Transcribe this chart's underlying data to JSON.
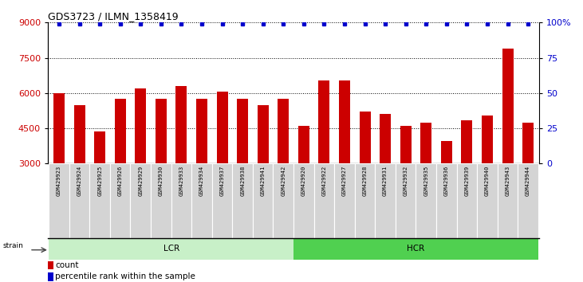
{
  "title": "GDS3723 / ILMN_1358419",
  "samples": [
    "GSM429923",
    "GSM429924",
    "GSM429925",
    "GSM429926",
    "GSM429929",
    "GSM429930",
    "GSM429933",
    "GSM429934",
    "GSM429937",
    "GSM429938",
    "GSM429941",
    "GSM429942",
    "GSM429920",
    "GSM429922",
    "GSM429927",
    "GSM429928",
    "GSM429931",
    "GSM429932",
    "GSM429935",
    "GSM429936",
    "GSM429939",
    "GSM429940",
    "GSM429943",
    "GSM429944"
  ],
  "counts": [
    5980,
    5500,
    4380,
    5750,
    6200,
    5750,
    6300,
    5750,
    6050,
    5750,
    5500,
    5750,
    4620,
    6550,
    6550,
    5200,
    5100,
    4600,
    4750,
    3950,
    4850,
    5050,
    7900,
    4750
  ],
  "groups": [
    {
      "label": "LCR",
      "start": 0,
      "end": 12,
      "color": "#c8f0c8"
    },
    {
      "label": "HCR",
      "start": 12,
      "end": 24,
      "color": "#50d050"
    }
  ],
  "bar_color": "#cc0000",
  "dot_color": "#0000cc",
  "ylim_left": [
    3000,
    9000
  ],
  "yticks_left": [
    3000,
    4500,
    6000,
    7500,
    9000
  ],
  "ylim_right": [
    0,
    100
  ],
  "yticks_right": [
    0,
    25,
    50,
    75,
    100
  ],
  "grid_lines": [
    4500,
    6000,
    7500
  ],
  "background_color": "#ffffff",
  "tick_label_color_left": "#cc0000",
  "tick_label_color_right": "#0000cc",
  "strain_label": "strain"
}
